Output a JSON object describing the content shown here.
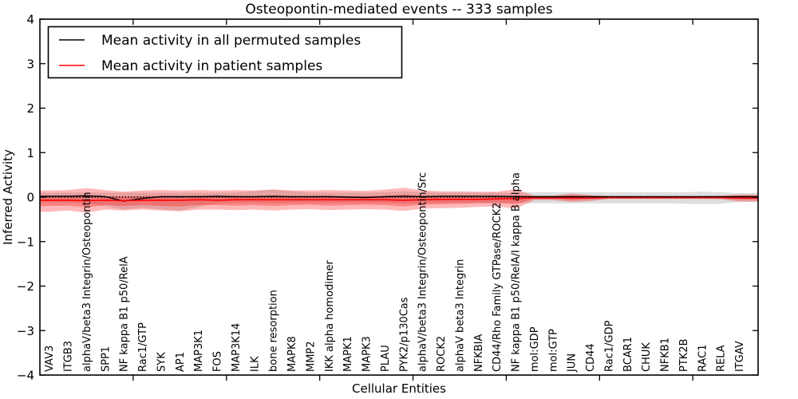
{
  "title": "Osteopontin-mediated events -- 333 samples",
  "sample_count_in_title": "333 samples",
  "colors": {
    "permuted": "#000000",
    "patient": "#ff0000",
    "patient_band": "#ff0000",
    "permuted_band": "#000000",
    "frame": "#000000",
    "background": "#ffffff"
  },
  "legend": {
    "items": [
      {
        "label": "Mean activity in all permuted samples",
        "color": "#000000"
      },
      {
        "label": "Mean activity in patient samples",
        "color": "#ff0000"
      }
    ],
    "position": "upper left"
  },
  "chart_data": {
    "type": "line",
    "title": "Osteopontin-mediated events -- 333 samples",
    "xlabel": "Cellular Entities",
    "ylabel": "Inferred Activity",
    "ylim": [
      -4,
      4
    ],
    "yticks": [
      -4,
      -3,
      -2,
      -1,
      0,
      1,
      2,
      3,
      4
    ],
    "grid": false,
    "legend_position": "upper left",
    "categories": [
      "VAV3",
      "ITGB3",
      "alphaV/beta3 Integrin/Osteopontin",
      "SPP1",
      "NF kappa B1 p50/RelA",
      "Rac1/GTP",
      "SYK",
      "AP1",
      "MAP3K1",
      "FOS",
      "MAP3K14",
      "ILK",
      "bone resorption",
      "MAPK8",
      "MMP2",
      "IKK alpha homodimer",
      "MAPK1",
      "MAPK3",
      "PLAU",
      "PYK2/p130Cas",
      "alphaV/beta3 Integrin/Osteopontin/Src",
      "ROCK2",
      "alphaV beta3 Integrin",
      "NFKBIA",
      "CD44/Rho Family GTPase/ROCK2",
      "NF kappa B1 p50/RelA/I kappa B alpha",
      "mol:GDP",
      "mol:GTP",
      "JUN",
      "CD44",
      "Rac1/GDP",
      "BCAR1",
      "CHUK",
      "NFKB1",
      "PTK2B",
      "RAC1",
      "RELA",
      "ITGAV"
    ],
    "series": [
      {
        "name": "Mean activity in all permuted samples",
        "color": "#000000",
        "values": [
          0.02,
          0.02,
          0.03,
          0.01,
          -0.09,
          -0.03,
          0.01,
          0.01,
          0.01,
          0.02,
          0.01,
          0.01,
          0.02,
          0.01,
          0.01,
          0.01,
          0.0,
          -0.01,
          0.01,
          0.02,
          0.01,
          0.02,
          0.02,
          0.02,
          0.02,
          0.01,
          0.01,
          0.01,
          0.01,
          0.01,
          0.01,
          0.01,
          0.01,
          0.01,
          0.01,
          0.01,
          0.01,
          0.01
        ]
      },
      {
        "name": "Mean activity in patient samples",
        "color": "#ff0000",
        "values": [
          -0.07,
          -0.07,
          -0.08,
          -0.07,
          -0.08,
          -0.07,
          -0.07,
          -0.07,
          -0.06,
          -0.07,
          -0.06,
          -0.06,
          -0.06,
          -0.06,
          -0.06,
          -0.06,
          -0.06,
          -0.06,
          -0.06,
          -0.07,
          -0.06,
          -0.05,
          -0.05,
          -0.05,
          -0.04,
          -0.03,
          -0.02,
          -0.02,
          -0.02,
          -0.02,
          -0.01,
          -0.01,
          -0.01,
          -0.01,
          -0.01,
          -0.01,
          -0.01,
          -0.02
        ]
      }
    ],
    "bands": [
      {
        "name": "permuted-range",
        "color": "#000000",
        "opacity": 0.13,
        "upper": [
          0.1,
          0.1,
          0.11,
          0.1,
          0.1,
          0.1,
          0.1,
          0.1,
          0.1,
          0.1,
          0.1,
          0.14,
          0.17,
          0.13,
          0.1,
          0.1,
          0.1,
          0.1,
          0.11,
          0.13,
          0.11,
          0.1,
          0.1,
          0.1,
          0.1,
          0.1,
          0.11,
          0.11,
          0.11,
          0.11,
          0.11,
          0.11,
          0.11,
          0.11,
          0.11,
          0.12,
          0.11,
          0.09
        ],
        "lower": [
          -0.12,
          -0.12,
          -0.14,
          -0.2,
          -0.28,
          -0.24,
          -0.28,
          -0.3,
          -0.22,
          -0.14,
          -0.13,
          -0.13,
          -0.14,
          -0.13,
          -0.13,
          -0.13,
          -0.13,
          -0.13,
          -0.13,
          -0.14,
          -0.13,
          -0.13,
          -0.13,
          -0.13,
          -0.13,
          -0.13,
          -0.14,
          -0.14,
          -0.14,
          -0.14,
          -0.14,
          -0.14,
          -0.14,
          -0.14,
          -0.15,
          -0.16,
          -0.15,
          -0.11
        ]
      },
      {
        "name": "patient-outer",
        "color": "#ff0000",
        "opacity": 0.28,
        "upper": [
          0.15,
          0.16,
          0.2,
          0.16,
          0.12,
          0.15,
          0.16,
          0.15,
          0.16,
          0.15,
          0.16,
          0.15,
          0.17,
          0.15,
          0.15,
          0.16,
          0.15,
          0.14,
          0.17,
          0.21,
          0.15,
          0.13,
          0.13,
          0.12,
          0.12,
          0.18,
          0.03,
          0.03,
          0.08,
          0.05,
          0.02,
          0.02,
          0.02,
          0.02,
          0.02,
          0.02,
          0.03,
          0.06
        ],
        "lower": [
          -0.33,
          -0.3,
          -0.35,
          -0.28,
          -0.3,
          -0.28,
          -0.3,
          -0.32,
          -0.28,
          -0.28,
          -0.29,
          -0.28,
          -0.3,
          -0.28,
          -0.27,
          -0.29,
          -0.28,
          -0.27,
          -0.28,
          -0.31,
          -0.26,
          -0.25,
          -0.24,
          -0.22,
          -0.21,
          -0.26,
          -0.07,
          -0.07,
          -0.11,
          -0.09,
          -0.04,
          -0.04,
          -0.04,
          -0.04,
          -0.04,
          -0.04,
          -0.05,
          -0.1
        ]
      },
      {
        "name": "patient-inner",
        "color": "#ff0000",
        "opacity": 0.28,
        "upper": [
          0.02,
          0.02,
          0.04,
          0.02,
          0.01,
          0.02,
          0.03,
          0.02,
          0.03,
          0.02,
          0.03,
          0.02,
          0.03,
          0.02,
          0.02,
          0.03,
          0.02,
          0.02,
          0.03,
          0.05,
          0.03,
          0.02,
          0.02,
          0.02,
          0.02,
          0.04,
          0.01,
          0.01,
          0.04,
          0.02,
          0.01,
          0.01,
          0.01,
          0.01,
          0.01,
          0.01,
          0.01,
          0.03
        ],
        "lower": [
          -0.2,
          -0.19,
          -0.23,
          -0.18,
          -0.2,
          -0.18,
          -0.2,
          -0.21,
          -0.18,
          -0.18,
          -0.19,
          -0.18,
          -0.2,
          -0.18,
          -0.17,
          -0.19,
          -0.18,
          -0.17,
          -0.18,
          -0.21,
          -0.17,
          -0.16,
          -0.15,
          -0.14,
          -0.13,
          -0.16,
          -0.04,
          -0.04,
          -0.07,
          -0.05,
          -0.03,
          -0.03,
          -0.03,
          -0.03,
          -0.03,
          -0.03,
          -0.03,
          -0.06
        ]
      }
    ],
    "zero_line": {
      "y": 0,
      "style": "dotted",
      "color": "#000000"
    }
  }
}
